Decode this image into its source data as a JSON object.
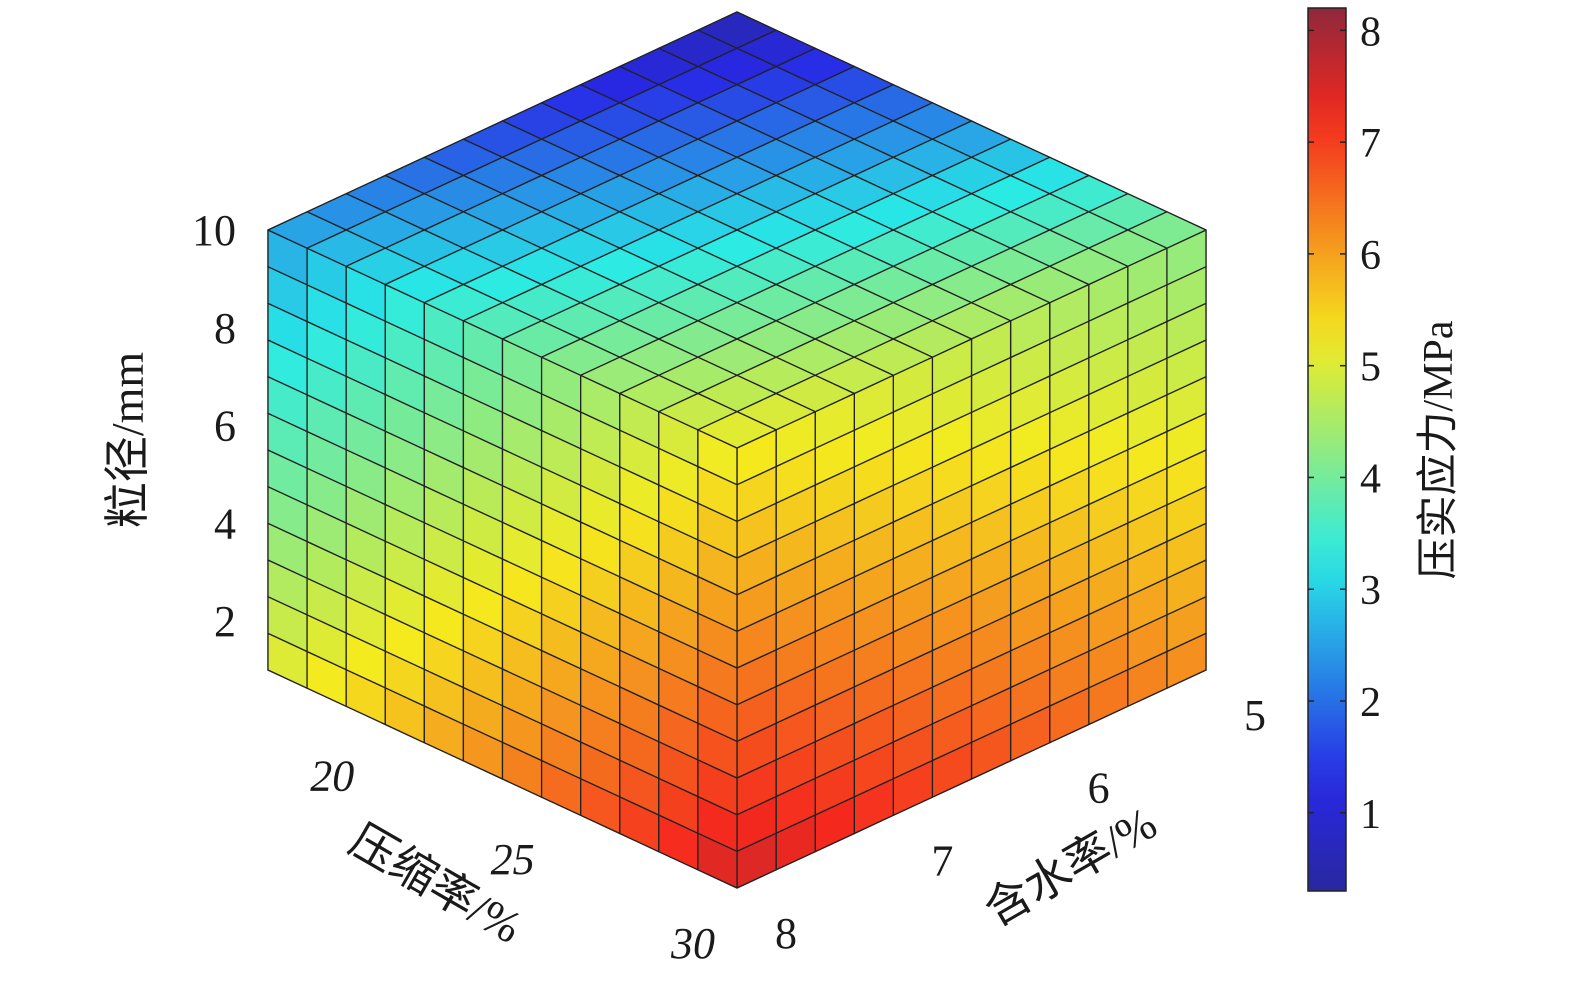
{
  "chart_data": {
    "type": "heatmap",
    "subtype": "3d-slice-volume",
    "title": "",
    "axes": {
      "z": {
        "label": "粒径/mm",
        "ticks": [
          "2",
          "4",
          "6",
          "8",
          "10"
        ],
        "range": [
          1,
          10
        ]
      },
      "x": {
        "label": "压缩率/%",
        "ticks": [
          "20",
          "25",
          "30"
        ],
        "range": [
          17,
          30
        ]
      },
      "y": {
        "label": "含水率/%",
        "ticks": [
          "5",
          "6",
          "7",
          "8"
        ],
        "range": [
          5,
          8
        ]
      }
    },
    "colorbar": {
      "label": "压实应力/MPa",
      "ticks": [
        "1",
        "2",
        "3",
        "4",
        "5",
        "6",
        "7",
        "8"
      ],
      "range": [
        0.3,
        8.2
      ],
      "colormap": "jet",
      "placement": "right"
    },
    "field_samples": {
      "description_keys": [
        "compression_ratio",
        "water_content",
        "particle_size",
        "stress_MPa"
      ],
      "corners": [
        {
          "compression_ratio": 17,
          "water_content": 5,
          "particle_size": 10,
          "stress_MPa": 0.5
        },
        {
          "compression_ratio": 17,
          "water_content": 5,
          "particle_size": 1,
          "stress_MPa": 3.5
        },
        {
          "compression_ratio": 30,
          "water_content": 5,
          "particle_size": 10,
          "stress_MPa": 4.2
        },
        {
          "compression_ratio": 30,
          "water_content": 5,
          "particle_size": 1,
          "stress_MPa": 6.2
        },
        {
          "compression_ratio": 17,
          "water_content": 8,
          "particle_size": 10,
          "stress_MPa": 2.5
        },
        {
          "compression_ratio": 17,
          "water_content": 8,
          "particle_size": 1,
          "stress_MPa": 5.0
        },
        {
          "compression_ratio": 30,
          "water_content": 8,
          "particle_size": 10,
          "stress_MPa": 5.2
        },
        {
          "compression_ratio": 30,
          "water_content": 8,
          "particle_size": 1,
          "stress_MPa": 7.6
        }
      ]
    },
    "grid": true
  }
}
